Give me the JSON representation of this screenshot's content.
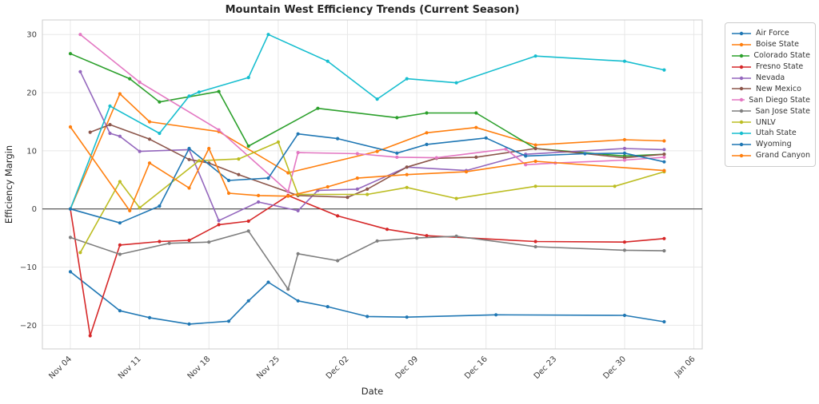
{
  "chart_data": {
    "type": "line",
    "title": "Mountain West Efficiency Trends (Current Season)",
    "xlabel": "Date",
    "ylabel": "Efficiency Margin",
    "x_unit": "days since Nov 04",
    "xlim_days": [
      -2.8,
      63.8
    ],
    "ylim": [
      -24.1,
      32.5
    ],
    "grid": true,
    "zero_line": true,
    "legend_position": "outside upper right",
    "x_ticks": [
      {
        "day": 0,
        "label": "Nov 04"
      },
      {
        "day": 7,
        "label": "Nov 11"
      },
      {
        "day": 14,
        "label": "Nov 18"
      },
      {
        "day": 21,
        "label": "Nov 25"
      },
      {
        "day": 28,
        "label": "Dec 02"
      },
      {
        "day": 35,
        "label": "Dec 09"
      },
      {
        "day": 42,
        "label": "Dec 16"
      },
      {
        "day": 49,
        "label": "Dec 23"
      },
      {
        "day": 56,
        "label": "Dec 30"
      },
      {
        "day": 63,
        "label": "Jan 06"
      }
    ],
    "y_ticks": [
      30,
      20,
      10,
      0,
      -10,
      -20
    ],
    "series": [
      {
        "name": "Air Force",
        "color": "#1f77b4",
        "points": [
          [
            0,
            -10.8
          ],
          [
            5,
            -17.5
          ],
          [
            8,
            -18.7
          ],
          [
            12,
            -19.8
          ],
          [
            16,
            -19.3
          ],
          [
            18,
            -15.8
          ],
          [
            20,
            -12.6
          ],
          [
            23,
            -15.8
          ],
          [
            26,
            -16.8
          ],
          [
            30,
            -18.5
          ],
          [
            34,
            -18.6
          ],
          [
            43,
            -18.2
          ],
          [
            56,
            -18.3
          ],
          [
            60,
            -19.4
          ]
        ]
      },
      {
        "name": "Boise State",
        "color": "#ff7f0e",
        "points": [
          [
            0,
            0
          ],
          [
            5,
            19.8
          ],
          [
            8,
            15.0
          ],
          [
            15,
            13.3
          ],
          [
            22,
            6.2
          ],
          [
            31,
            9.9
          ],
          [
            36,
            13.1
          ],
          [
            41,
            14.0
          ],
          [
            47,
            11.0
          ],
          [
            56,
            11.9
          ],
          [
            60,
            11.7
          ]
        ]
      },
      {
        "name": "Colorado State",
        "color": "#2ca02c",
        "points": [
          [
            0,
            26.7
          ],
          [
            6,
            22.4
          ],
          [
            9,
            18.4
          ],
          [
            15,
            20.2
          ],
          [
            18,
            10.8
          ],
          [
            25,
            17.3
          ],
          [
            33,
            15.7
          ],
          [
            36,
            16.5
          ],
          [
            41,
            16.5
          ],
          [
            47,
            10.4
          ],
          [
            56,
            9.1
          ],
          [
            60,
            9.4
          ]
        ]
      },
      {
        "name": "Fresno State",
        "color": "#d62728",
        "points": [
          [
            0,
            0
          ],
          [
            2,
            -21.8
          ],
          [
            5,
            -6.2
          ],
          [
            9,
            -5.6
          ],
          [
            12,
            -5.4
          ],
          [
            15,
            -2.7
          ],
          [
            18,
            -2.1
          ],
          [
            22,
            2.3
          ],
          [
            27,
            -1.2
          ],
          [
            32,
            -3.5
          ],
          [
            36,
            -4.6
          ],
          [
            47,
            -5.6
          ],
          [
            56,
            -5.7
          ],
          [
            60,
            -5.1
          ]
        ]
      },
      {
        "name": "Nevada",
        "color": "#9467bd",
        "points": [
          [
            1,
            23.6
          ],
          [
            4,
            13.0
          ],
          [
            5,
            12.5
          ],
          [
            7,
            9.9
          ],
          [
            12,
            10.2
          ],
          [
            15,
            -2.0
          ],
          [
            19,
            1.2
          ],
          [
            23,
            -0.3
          ],
          [
            25,
            3.2
          ],
          [
            29,
            3.4
          ],
          [
            34,
            7.2
          ],
          [
            40,
            6.6
          ],
          [
            46,
            9.4
          ],
          [
            56,
            10.4
          ],
          [
            60,
            10.2
          ]
        ]
      },
      {
        "name": "New Mexico",
        "color": "#8c564b",
        "points": [
          [
            2,
            13.2
          ],
          [
            4,
            14.5
          ],
          [
            8,
            12.0
          ],
          [
            12,
            8.5
          ],
          [
            14,
            7.9
          ],
          [
            17,
            5.9
          ],
          [
            23,
            2.3
          ],
          [
            28,
            2.0
          ],
          [
            30,
            3.4
          ],
          [
            34,
            7.2
          ],
          [
            37,
            8.7
          ],
          [
            41,
            8.9
          ],
          [
            47,
            10.4
          ],
          [
            56,
            8.8
          ],
          [
            60,
            9.4
          ]
        ]
      },
      {
        "name": "San Diego State",
        "color": "#e377c2",
        "points": [
          [
            1,
            30.0
          ],
          [
            7,
            21.8
          ],
          [
            15,
            13.6
          ],
          [
            22,
            3.0
          ],
          [
            23,
            9.7
          ],
          [
            29,
            9.5
          ],
          [
            33,
            8.9
          ],
          [
            37,
            8.8
          ],
          [
            44,
            10.3
          ],
          [
            46,
            7.6
          ],
          [
            49,
            7.9
          ],
          [
            56,
            8.4
          ],
          [
            60,
            8.9
          ]
        ]
      },
      {
        "name": "San Jose State",
        "color": "#7f7f7f",
        "points": [
          [
            0,
            -4.9
          ],
          [
            5,
            -7.8
          ],
          [
            10,
            -5.9
          ],
          [
            14,
            -5.7
          ],
          [
            18,
            -3.8
          ],
          [
            22,
            -13.8
          ],
          [
            23,
            -7.7
          ],
          [
            27,
            -8.9
          ],
          [
            31,
            -5.5
          ],
          [
            35,
            -5.0
          ],
          [
            39,
            -4.7
          ],
          [
            47,
            -6.5
          ],
          [
            56,
            -7.1
          ],
          [
            60,
            -7.2
          ]
        ]
      },
      {
        "name": "UNLV",
        "color": "#bcbd22",
        "points": [
          [
            1,
            -7.5
          ],
          [
            5,
            4.7
          ],
          [
            7,
            0.2
          ],
          [
            13,
            8.3
          ],
          [
            17,
            8.6
          ],
          [
            21,
            11.5
          ],
          [
            23,
            2.5
          ],
          [
            30,
            2.5
          ],
          [
            34,
            3.7
          ],
          [
            39,
            1.8
          ],
          [
            47,
            3.9
          ],
          [
            55,
            3.9
          ],
          [
            60,
            6.4
          ]
        ]
      },
      {
        "name": "Utah State",
        "color": "#17becf",
        "points": [
          [
            0,
            0
          ],
          [
            4,
            17.7
          ],
          [
            9,
            13.0
          ],
          [
            12,
            19.4
          ],
          [
            13,
            20.1
          ],
          [
            18,
            22.6
          ],
          [
            20,
            30.0
          ],
          [
            26,
            25.4
          ],
          [
            31,
            18.9
          ],
          [
            34,
            22.4
          ],
          [
            39,
            21.7
          ],
          [
            47,
            26.3
          ],
          [
            56,
            25.4
          ],
          [
            60,
            23.9
          ]
        ]
      },
      {
        "name": "Wyoming",
        "color": "#1f77b4",
        "points": [
          [
            0,
            0
          ],
          [
            5,
            -2.4
          ],
          [
            9,
            0.5
          ],
          [
            12,
            10.4
          ],
          [
            16,
            4.9
          ],
          [
            20,
            5.3
          ],
          [
            23,
            12.9
          ],
          [
            27,
            12.1
          ],
          [
            33,
            9.6
          ],
          [
            36,
            11.1
          ],
          [
            42,
            12.2
          ],
          [
            46,
            9.1
          ],
          [
            52,
            9.5
          ],
          [
            56,
            9.6
          ],
          [
            60,
            8.1
          ]
        ]
      },
      {
        "name": "Grand Canyon",
        "color": "#ff7f0e",
        "points": [
          [
            0,
            14.1
          ],
          [
            6,
            -0.3
          ],
          [
            8,
            7.9
          ],
          [
            12,
            3.6
          ],
          [
            14,
            10.4
          ],
          [
            16,
            2.7
          ],
          [
            19,
            2.3
          ],
          [
            22,
            2.2
          ],
          [
            26,
            3.8
          ],
          [
            29,
            5.3
          ],
          [
            34,
            5.9
          ],
          [
            40,
            6.4
          ],
          [
            47,
            8.2
          ],
          [
            60,
            6.6
          ]
        ]
      }
    ]
  }
}
